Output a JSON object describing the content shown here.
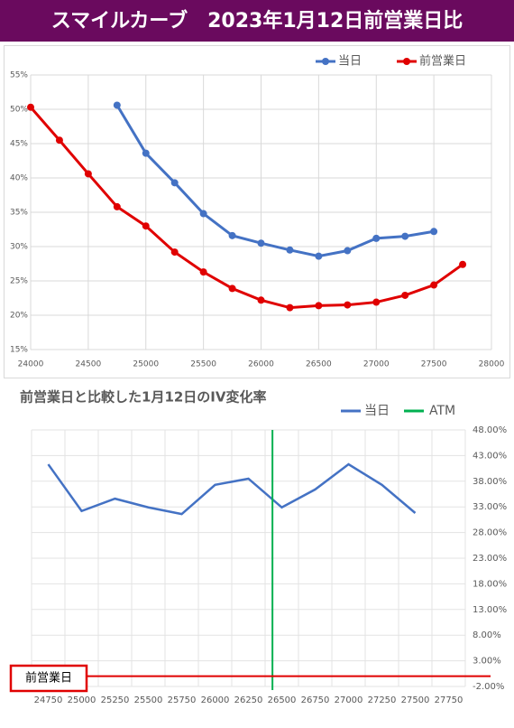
{
  "header": {
    "title": "スマイルカーブ　2023年1月12日前営業日比"
  },
  "chart_data": [
    {
      "type": "line",
      "xlim": [
        24000,
        28000
      ],
      "xticks": [
        24000,
        24500,
        25000,
        25500,
        26000,
        26500,
        27000,
        27500,
        28000
      ],
      "ylim": [
        15,
        55
      ],
      "yticks": [
        {
          "value": 15,
          "label": "15%"
        },
        {
          "value": 20,
          "label": "20%"
        },
        {
          "value": 25,
          "label": "25%"
        },
        {
          "value": 30,
          "label": "30%"
        },
        {
          "value": 35,
          "label": "35%"
        },
        {
          "value": 40,
          "label": "40%"
        },
        {
          "value": 45,
          "label": "45%"
        },
        {
          "value": 50,
          "label": "50%"
        },
        {
          "value": 55,
          "label": "55%"
        }
      ],
      "grid": true,
      "legend": "top-right",
      "series": [
        {
          "name": "当日",
          "color": "#4472c4",
          "x": [
            24750,
            25000,
            25250,
            25500,
            25750,
            26000,
            26250,
            26500,
            26750,
            27000,
            27250,
            27500
          ],
          "values": [
            50.6,
            43.6,
            39.3,
            34.8,
            31.6,
            30.5,
            29.5,
            28.6,
            29.4,
            31.2,
            31.5,
            32.2
          ]
        },
        {
          "name": "前営業日",
          "color": "#e00000",
          "x": [
            24000,
            24250,
            24500,
            24750,
            25000,
            25250,
            25500,
            25750,
            26000,
            26250,
            26500,
            26750,
            27000,
            27250,
            27500,
            27750
          ],
          "values": [
            50.3,
            45.5,
            40.6,
            35.8,
            33.0,
            29.2,
            26.3,
            23.9,
            22.2,
            21.1,
            21.4,
            21.5,
            21.9,
            22.9,
            24.4,
            27.4
          ]
        }
      ]
    },
    {
      "type": "line",
      "title": "前営業日と比較した1月12日のIV変化率",
      "categories": [
        "24750",
        "25000",
        "25250",
        "25500",
        "25750",
        "26000",
        "26250",
        "26500",
        "26750",
        "27000",
        "27250",
        "27500",
        "27750"
      ],
      "y2lim": [
        -2,
        48
      ],
      "y2ticks": [
        {
          "value": -2,
          "label": "-2.00%"
        },
        {
          "value": 3,
          "label": "3.00%"
        },
        {
          "value": 8,
          "label": "8.00%"
        },
        {
          "value": 13,
          "label": "13.00%"
        },
        {
          "value": 18,
          "label": "18.00%"
        },
        {
          "value": 23,
          "label": "23.00%"
        },
        {
          "value": 28,
          "label": "28.00%"
        },
        {
          "value": 33,
          "label": "33.00%"
        },
        {
          "value": 38,
          "label": "38.00%"
        },
        {
          "value": 43,
          "label": "43.00%"
        },
        {
          "value": 48,
          "label": "48.00%"
        }
      ],
      "grid": true,
      "legend": "top-right",
      "series": [
        {
          "name": "当日",
          "color": "#4472c4",
          "axis": "y2",
          "values": [
            41.3,
            32.2,
            34.6,
            32.9,
            31.6,
            37.3,
            38.5,
            32.9,
            36.4,
            41.3,
            37.3,
            31.8,
            null
          ]
        }
      ],
      "atm": {
        "name": "ATM",
        "color": "#00b050",
        "x": 26430
      },
      "baseline": {
        "label": "前営業日",
        "value": 0,
        "color": "#e00000"
      }
    }
  ]
}
